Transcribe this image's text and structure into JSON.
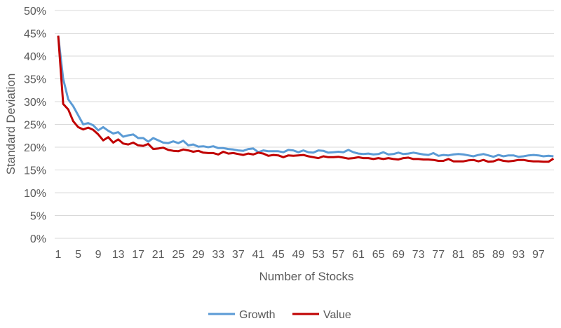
{
  "chart_data": {
    "type": "line",
    "xlabel": "Number of Stocks",
    "ylabel": "Standard Deviation",
    "ylim": [
      0,
      50
    ],
    "xlim": [
      1,
      100
    ],
    "x_tick_labels": [
      "1",
      "5",
      "9",
      "13",
      "17",
      "21",
      "25",
      "29",
      "33",
      "37",
      "41",
      "45",
      "49",
      "53",
      "57",
      "61",
      "65",
      "69",
      "73",
      "77",
      "81",
      "85",
      "89",
      "93",
      "97"
    ],
    "y_tick_labels": [
      "0%",
      "5%",
      "10%",
      "15%",
      "20%",
      "25%",
      "30%",
      "35%",
      "40%",
      "45%",
      "50%"
    ],
    "grid": "horizontal",
    "legend": "bottom",
    "series": [
      {
        "name": "Growth",
        "color": "#5B9BD5",
        "values": [
          44.5,
          35,
          30.5,
          29,
          27,
          25,
          25.3,
          24.8,
          23.7,
          24.4,
          23.6,
          23,
          23.3,
          22.3,
          22.6,
          22.8,
          22,
          22,
          21.2,
          22,
          21.5,
          21,
          20.9,
          21.3,
          20.9,
          21.4,
          20.4,
          20.6,
          20.1,
          20.2,
          20,
          20.2,
          19.8,
          19.8,
          19.6,
          19.5,
          19.3,
          19.2,
          19.6,
          19.7,
          18.9,
          19.3,
          19.1,
          19.1,
          19.1,
          18.9,
          19.4,
          19.3,
          18.9,
          19.3,
          18.9,
          18.8,
          19.3,
          19.2,
          18.8,
          18.9,
          19,
          18.9,
          19.4,
          18.9,
          18.6,
          18.5,
          18.6,
          18.4,
          18.5,
          18.9,
          18.4,
          18.5,
          18.8,
          18.5,
          18.6,
          18.8,
          18.6,
          18.4,
          18.3,
          18.7,
          18.1,
          18.3,
          18.2,
          18.4,
          18.5,
          18.4,
          18.2,
          18,
          18.3,
          18.5,
          18.2,
          17.9,
          18.3,
          18,
          18.2,
          18.2,
          17.9,
          18,
          18.2,
          18.3,
          18.2,
          18,
          18.1,
          18
        ]
      },
      {
        "name": "Value",
        "color": "#C00000",
        "values": [
          44.5,
          29.5,
          28.3,
          25.7,
          24.4,
          23.9,
          24.3,
          23.8,
          22.8,
          21.5,
          22.2,
          21,
          21.7,
          20.8,
          20.6,
          21,
          20.4,
          20.3,
          20.7,
          19.6,
          19.7,
          19.9,
          19.4,
          19.2,
          19.1,
          19.5,
          19.3,
          19,
          19.2,
          18.8,
          18.7,
          18.7,
          18.4,
          19,
          18.6,
          18.7,
          18.5,
          18.3,
          18.6,
          18.4,
          18.8,
          18.6,
          18.1,
          18.3,
          18.2,
          17.8,
          18.2,
          18.1,
          18.2,
          18.3,
          18,
          17.8,
          17.6,
          18,
          17.8,
          17.8,
          17.9,
          17.7,
          17.5,
          17.6,
          17.8,
          17.6,
          17.6,
          17.4,
          17.6,
          17.4,
          17.6,
          17.4,
          17.3,
          17.6,
          17.7,
          17.4,
          17.4,
          17.3,
          17.3,
          17.2,
          17,
          17,
          17.4,
          16.9,
          16.9,
          16.9,
          17.1,
          17.2,
          16.9,
          17.2,
          16.8,
          16.9,
          17.3,
          17,
          16.9,
          17,
          17.2,
          17.2,
          17,
          16.9,
          16.9,
          16.8,
          16.8,
          17.5
        ]
      }
    ]
  }
}
